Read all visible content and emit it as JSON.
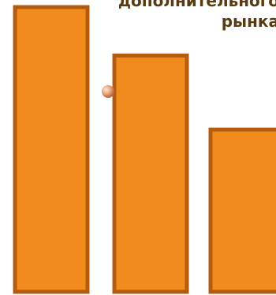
{
  "chart_data": {
    "type": "bar",
    "title_lines": [
      "дополнительного",
      "рынка"
    ],
    "categories": [
      "",
      "",
      ""
    ],
    "values": [
      100,
      83,
      57
    ],
    "ylim": [
      0,
      100
    ],
    "grid": false,
    "bar_color": "#f28b1e",
    "bar_border_color": "#b35c0e",
    "marker_color": "#e8a27a"
  }
}
